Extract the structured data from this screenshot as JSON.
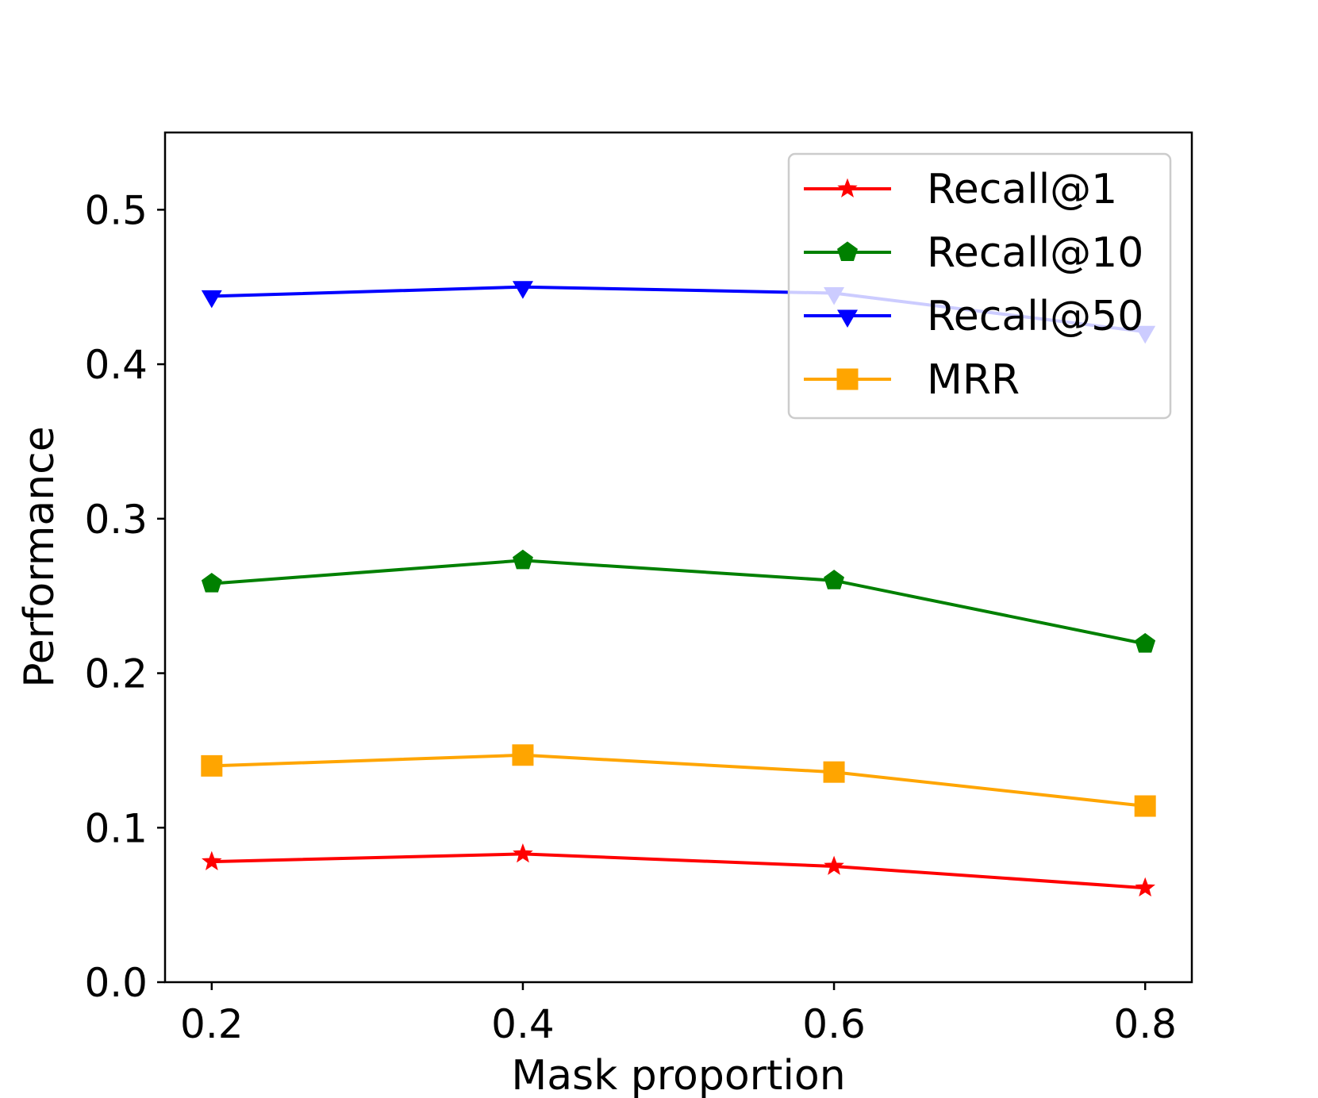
{
  "chart_data": {
    "type": "line",
    "title": "",
    "xlabel": "Mask proportion",
    "ylabel": "Performance",
    "x": [
      0.2,
      0.4,
      0.6,
      0.8
    ],
    "xticks": [
      "0.2",
      "0.4",
      "0.6",
      "0.8"
    ],
    "xlim": [
      0.17,
      0.83
    ],
    "ylim": [
      0,
      0.55
    ],
    "yticks": [
      "0.0",
      "0.1",
      "0.2",
      "0.3",
      "0.4",
      "0.5"
    ],
    "grid": false,
    "legend_position": "top-right",
    "series": [
      {
        "name": "Recall@1",
        "values": [
          0.078,
          0.083,
          0.075,
          0.061
        ],
        "color": "#ff0000",
        "marker": "star"
      },
      {
        "name": "Recall@10",
        "values": [
          0.258,
          0.273,
          0.26,
          0.219
        ],
        "color": "#008000",
        "marker": "pentagon"
      },
      {
        "name": "Recall@50",
        "values": [
          0.444,
          0.45,
          0.446,
          0.421
        ],
        "color": "#0000ff",
        "marker": "triangle-down"
      },
      {
        "name": "MRR",
        "values": [
          0.14,
          0.147,
          0.136,
          0.114
        ],
        "color": "#ffa500",
        "marker": "square"
      }
    ]
  }
}
